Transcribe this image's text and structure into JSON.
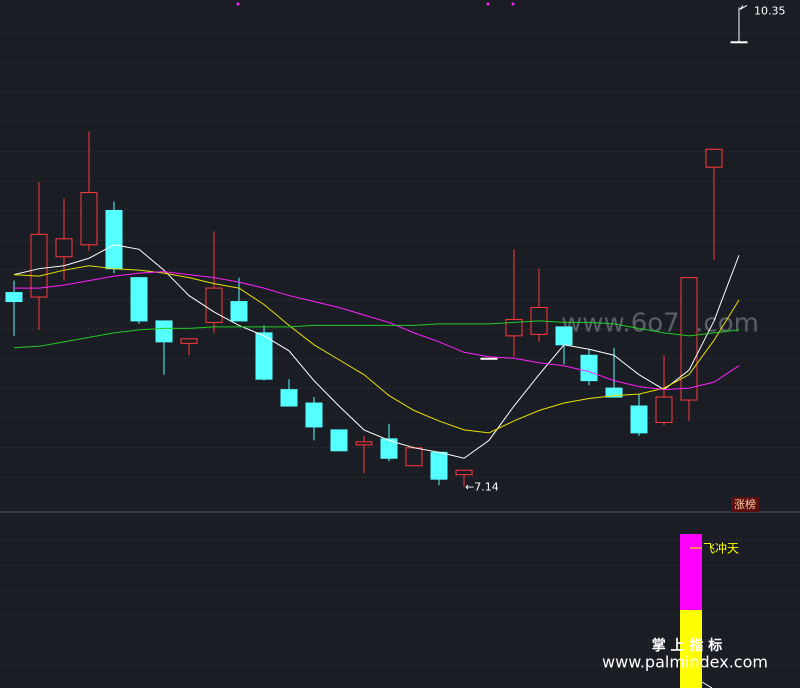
{
  "chart_data": {
    "type": "candlestick",
    "categories": [
      null,
      null,
      null,
      null,
      null,
      null,
      null,
      null,
      null,
      null,
      null,
      null,
      null,
      null,
      null,
      null,
      null,
      null,
      null,
      null,
      null,
      null,
      null,
      null,
      null,
      null,
      null,
      null,
      null,
      null
    ],
    "open": [
      8.44,
      8.41,
      8.68,
      8.76,
      8.99,
      8.54,
      8.25,
      8.1,
      8.24,
      8.38,
      8.17,
      7.79,
      7.7,
      7.52,
      7.42,
      7.46,
      7.28,
      7.37,
      7.22,
      8.0,
      8.15,
      8.16,
      8.21,
      8.02,
      7.8,
      7.68,
      7.57,
      7.72,
      9.28,
      10.12
    ],
    "close": [
      8.38,
      8.83,
      8.8,
      9.11,
      8.6,
      8.25,
      8.11,
      8.13,
      8.47,
      8.25,
      7.86,
      7.68,
      7.54,
      7.38,
      7.44,
      7.33,
      7.4,
      7.19,
      7.25,
      8.0,
      8.26,
      8.34,
      8.09,
      7.85,
      7.74,
      7.5,
      7.74,
      8.54,
      9.4,
      10.12
    ],
    "high": [
      8.52,
      9.18,
      9.07,
      9.52,
      9.05,
      8.54,
      8.25,
      8.13,
      8.85,
      8.54,
      8.22,
      7.86,
      7.74,
      7.52,
      7.48,
      7.56,
      7.41,
      7.37,
      7.25,
      8.0,
      8.73,
      8.6,
      8.21,
      8.06,
      8.07,
      7.76,
      8.02,
      8.54,
      9.4,
      10.35
    ],
    "low": [
      8.15,
      8.19,
      8.52,
      8.72,
      8.57,
      8.23,
      7.89,
      8.02,
      8.17,
      8.25,
      7.85,
      7.68,
      7.45,
      7.38,
      7.23,
      7.31,
      7.28,
      7.15,
      7.14,
      8.0,
      8.01,
      8.11,
      7.96,
      7.82,
      7.74,
      7.48,
      7.55,
      7.58,
      8.66,
      10.12
    ],
    "up_color": "#ff3b3b",
    "down_color": "#54ffff",
    "flat_color": "#ffffff",
    "series": [
      {
        "color": "#ffffff",
        "values": [
          8.56,
          8.6,
          8.62,
          8.67,
          8.76,
          8.73,
          8.59,
          8.42,
          8.31,
          8.22,
          8.15,
          8.05,
          7.85,
          7.68,
          7.52,
          7.45,
          7.4,
          7.37,
          7.33,
          7.45,
          7.68,
          7.89,
          8.09,
          8.06,
          8.02,
          7.89,
          7.79,
          7.92,
          8.25,
          8.69
        ]
      },
      {
        "color": "#e8e000",
        "values": [
          8.56,
          8.55,
          8.59,
          8.62,
          8.6,
          8.59,
          8.57,
          8.54,
          8.5,
          8.47,
          8.36,
          8.22,
          8.09,
          7.99,
          7.89,
          7.75,
          7.65,
          7.58,
          7.52,
          7.5,
          7.58,
          7.65,
          7.7,
          7.73,
          7.75,
          7.76,
          7.8,
          7.89,
          8.12,
          8.39
        ]
      },
      {
        "color": "#ff22ff",
        "values": [
          8.47,
          8.47,
          8.49,
          8.52,
          8.55,
          8.57,
          8.58,
          8.56,
          8.54,
          8.51,
          8.47,
          8.42,
          8.38,
          8.34,
          8.29,
          8.24,
          8.17,
          8.11,
          8.04,
          8.01,
          8.0,
          7.97,
          7.95,
          7.91,
          7.85,
          7.81,
          7.79,
          7.8,
          7.84,
          7.95
        ]
      },
      {
        "color": "#22cc22",
        "values": [
          8.07,
          8.08,
          8.11,
          8.14,
          8.17,
          8.19,
          8.2,
          8.2,
          8.21,
          8.21,
          8.21,
          8.21,
          8.22,
          8.22,
          8.22,
          8.22,
          8.22,
          8.23,
          8.23,
          8.23,
          8.24,
          8.25,
          8.24,
          8.24,
          8.23,
          8.2,
          8.17,
          8.15,
          8.17,
          8.19
        ]
      }
    ],
    "ylim": [
      6.97,
      10.4
    ],
    "annotations": [
      "10.35",
      "←7.14"
    ],
    "badge": "涨榜",
    "indicator_label": "飞冲天",
    "watermarks": [
      "www.6o7o.com",
      "掌 上 指 标",
      "www.palmindex.com"
    ]
  }
}
